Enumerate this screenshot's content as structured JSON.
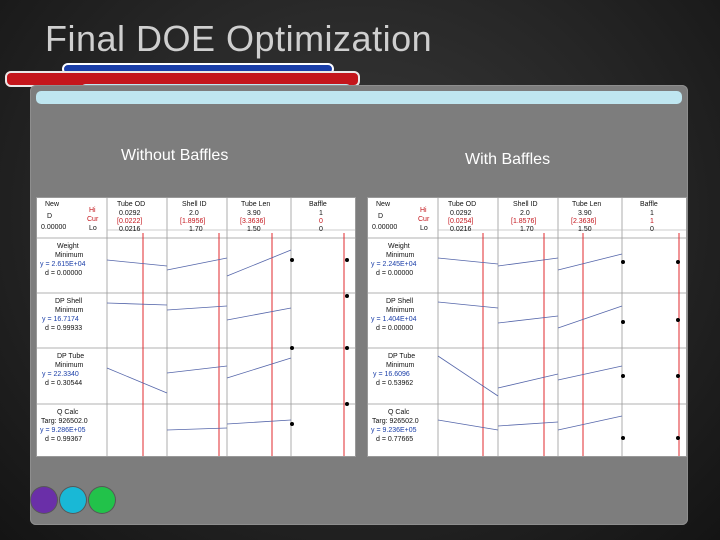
{
  "title": "Final DOE Optimization",
  "accent_colors": {
    "red": "#c4161c",
    "blue": "#1a3ea8",
    "cyan": "#bfe6f0",
    "yellow": "#e8e69a"
  },
  "panels": [
    {
      "label": "Without Baffles",
      "header": {
        "new": "New",
        "d_label": "D",
        "d_value": "0.00000",
        "hi": "Hi",
        "cur": "Cur",
        "lo": "Lo",
        "factors": [
          {
            "name": "Tube OD",
            "hi": "0.0292",
            "cur": "[0.0222]",
            "lo": "0.0216"
          },
          {
            "name": "Shell ID",
            "hi": "2.0",
            "cur": "[1.8956]",
            "lo": "1.70"
          },
          {
            "name": "Tube Len",
            "hi": "3.90",
            "cur": "[3.3636]",
            "lo": "1.50"
          },
          {
            "name": "Baffle",
            "hi": "1",
            "cur": "0",
            "lo": "0"
          }
        ]
      },
      "responses": [
        {
          "name": "Weight",
          "goal": "Minimum",
          "y": "y = 2.615E+04",
          "d": "d = 0.00000"
        },
        {
          "name": "DP Shell",
          "goal": "Minimum",
          "y": "y = 16.7174",
          "d": "d = 0.99933"
        },
        {
          "name": "DP Tube",
          "goal": "Minimum",
          "y": "y = 22.3340",
          "d": "d = 0.30544"
        },
        {
          "name": "Q Calc",
          "goal": "Targ: 926502.0",
          "y": "y = 9.286E+05",
          "d": "d = 0.99367"
        }
      ]
    },
    {
      "label": "With Baffles",
      "header": {
        "new": "New",
        "d_label": "D",
        "d_value": "0.00000",
        "hi": "Hi",
        "cur": "Cur",
        "lo": "Lo",
        "factors": [
          {
            "name": "Tube OD",
            "hi": "0.0292",
            "cur": "[0.0254]",
            "lo": "0.0216"
          },
          {
            "name": "Shell ID",
            "hi": "2.0",
            "cur": "[1.8576]",
            "lo": "1.70"
          },
          {
            "name": "Tube Len",
            "hi": "3.90",
            "cur": "[2.3636]",
            "lo": "1.50"
          },
          {
            "name": "Baffle",
            "hi": "1",
            "cur": "1",
            "lo": "0"
          }
        ]
      },
      "responses": [
        {
          "name": "Weight",
          "goal": "Minimum",
          "y": "y = 2.245E+04",
          "d": "d = 0.00000"
        },
        {
          "name": "DP Shell",
          "goal": "Minimum",
          "y": "y = 1.404E+04",
          "d": "d = 0.00000"
        },
        {
          "name": "DP Tube",
          "goal": "Minimum",
          "y": "y = 16.6096",
          "d": "d = 0.53962"
        },
        {
          "name": "Q Calc",
          "goal": "Targ: 926502.0",
          "y": "y = 9.236E+05",
          "d": "d = 0.77665"
        }
      ]
    }
  ],
  "nav_dots": [
    "#6a2fa8",
    "#19b8d6",
    "#22c24a"
  ]
}
